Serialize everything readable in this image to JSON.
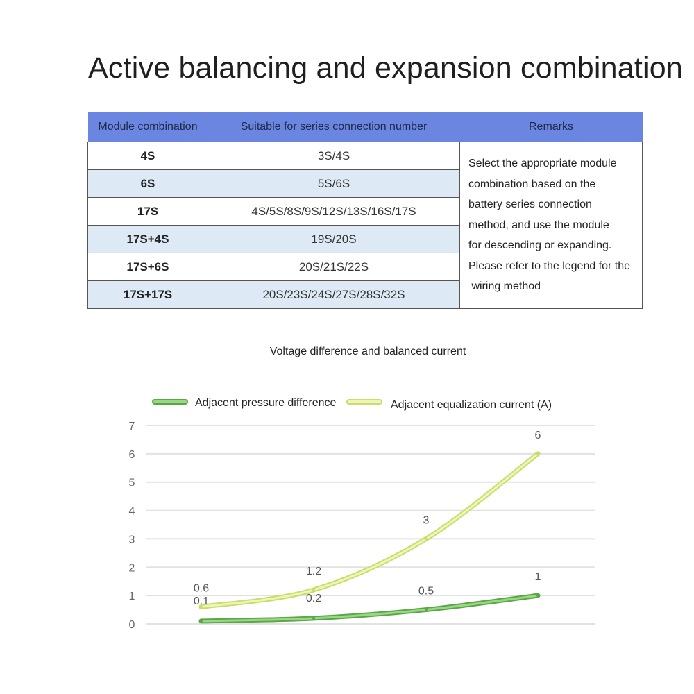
{
  "title": "Active balancing and expansion combination",
  "table": {
    "headers": [
      "Module combination",
      "Suitable for series connection number",
      "Remarks"
    ],
    "rows": [
      {
        "module": "4S",
        "series": "3S/4S"
      },
      {
        "module": "6S",
        "series": "5S/6S"
      },
      {
        "module": "17S",
        "series": "4S/5S/8S/9S/12S/13S/16S/17S"
      },
      {
        "module": "17S+4S",
        "series": "19S/20S"
      },
      {
        "module": "17S+6S",
        "series": "20S/21S/22S"
      },
      {
        "module": "17S+17S",
        "series": "20S/23S/24S/27S/28S/32S"
      }
    ],
    "remarks_lines": [
      "Select the appropriate module",
      "combination based on the",
      "battery series connection",
      "method, and use the module",
      "for descending or expanding.",
      "Please refer to the legend for the",
      " wiring method"
    ],
    "header_color": "#6b86e0",
    "alt_row_color": "#dde9f5"
  },
  "chart_data": {
    "type": "line",
    "title": "Voltage difference and balanced current",
    "ylim": [
      0,
      7
    ],
    "yticks": [
      "0",
      "1",
      "2",
      "3",
      "4",
      "5",
      "6",
      "7"
    ],
    "grid": true,
    "legend_placement": "top",
    "x": [
      1,
      2,
      3,
      4
    ],
    "series": [
      {
        "name": "Adjacent pressure difference",
        "values": [
          0.1,
          0.2,
          0.5,
          1
        ],
        "labels": [
          "0.1",
          "0.2",
          "0.5",
          "1"
        ],
        "color": "#5aa845",
        "inner": "#9ad687"
      },
      {
        "name": "Adjacent equalization current (A)",
        "values": [
          0.6,
          1.2,
          3,
          6
        ],
        "labels": [
          "0.6",
          "1.2",
          "3",
          "6"
        ],
        "color": "#cbdc6e",
        "inner": "#eef5b5"
      }
    ]
  }
}
